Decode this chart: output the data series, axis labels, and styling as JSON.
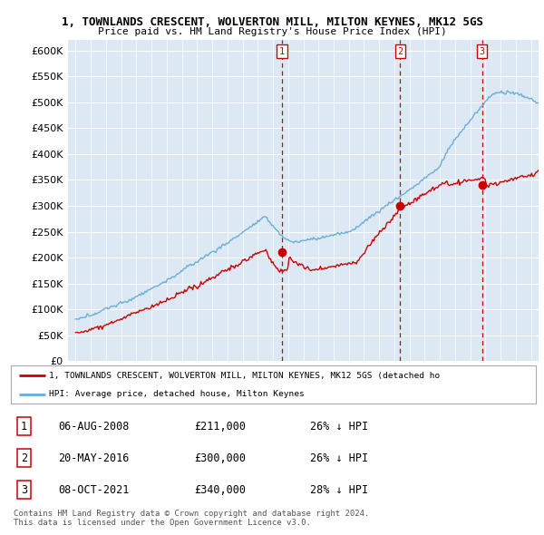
{
  "title1": "1, TOWNLANDS CRESCENT, WOLVERTON MILL, MILTON KEYNES, MK12 5GS",
  "title2": "Price paid vs. HM Land Registry's House Price Index (HPI)",
  "bg_color": "#dce9f5",
  "hpi_color": "#6baed6",
  "price_color": "#cc0000",
  "vline_color": "#cc0000",
  "ylim": [
    0,
    620000
  ],
  "yticks": [
    0,
    50000,
    100000,
    150000,
    200000,
    250000,
    300000,
    350000,
    400000,
    450000,
    500000,
    550000,
    600000
  ],
  "transactions": [
    {
      "label": "1",
      "date": "06-AUG-2008",
      "price": 211000,
      "pct": "26%",
      "dir": "↓",
      "x": 2008.6
    },
    {
      "label": "2",
      "date": "20-MAY-2016",
      "price": 300000,
      "pct": "26%",
      "dir": "↓",
      "x": 2016.38
    },
    {
      "label": "3",
      "date": "08-OCT-2021",
      "price": 340000,
      "pct": "28%",
      "dir": "↓",
      "x": 2021.77
    }
  ],
  "legend_line1": "1, TOWNLANDS CRESCENT, WOLVERTON MILL, MILTON KEYNES, MK12 5GS (detached ho",
  "legend_line2": "HPI: Average price, detached house, Milton Keynes",
  "footer1": "Contains HM Land Registry data © Crown copyright and database right 2024.",
  "footer2": "This data is licensed under the Open Government Licence v3.0.",
  "xlim": [
    1994.5,
    2025.5
  ],
  "xtick_start": 1995,
  "xtick_end": 2025
}
